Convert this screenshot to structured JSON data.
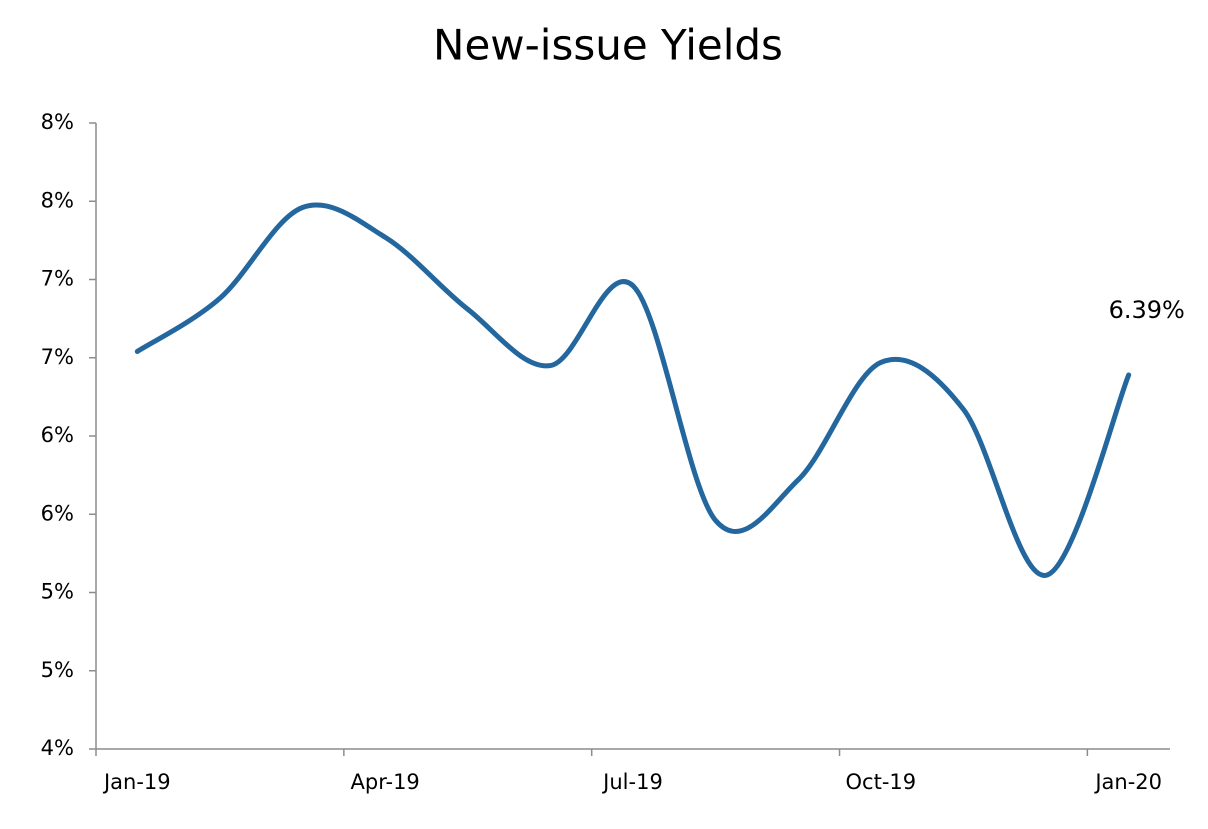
{
  "chart_data": {
    "type": "line",
    "title": "New-issue Yields",
    "categories": [
      "Jan-19",
      null,
      null,
      "Apr-19",
      null,
      null,
      "Jul-19",
      null,
      null,
      "Oct-19",
      null,
      null,
      "Jan-20"
    ],
    "series": [
      {
        "color": "#23679e",
        "values": [
          6.54,
          6.88,
          7.46,
          7.27,
          6.81,
          6.45,
          6.96,
          5.46,
          5.72,
          6.47,
          6.17,
          5.11,
          6.39
        ],
        "value_labels": [
          null,
          null,
          null,
          null,
          null,
          null,
          null,
          null,
          null,
          null,
          null,
          null,
          "6.39%"
        ]
      }
    ],
    "ylim": [
      4,
      8
    ],
    "yticks": [
      {
        "value": 4,
        "label": "4%"
      },
      {
        "value": 4.5,
        "label": "5%"
      },
      {
        "value": 5,
        "label": "5%"
      },
      {
        "value": 5.5,
        "label": "6%"
      },
      {
        "value": 6,
        "label": "6%"
      },
      {
        "value": 6.5,
        "label": "7%"
      },
      {
        "value": 7,
        "label": "7%"
      },
      {
        "value": 7.5,
        "label": "8%"
      },
      {
        "value": 8,
        "label": "8%"
      }
    ],
    "smooth": true
  }
}
